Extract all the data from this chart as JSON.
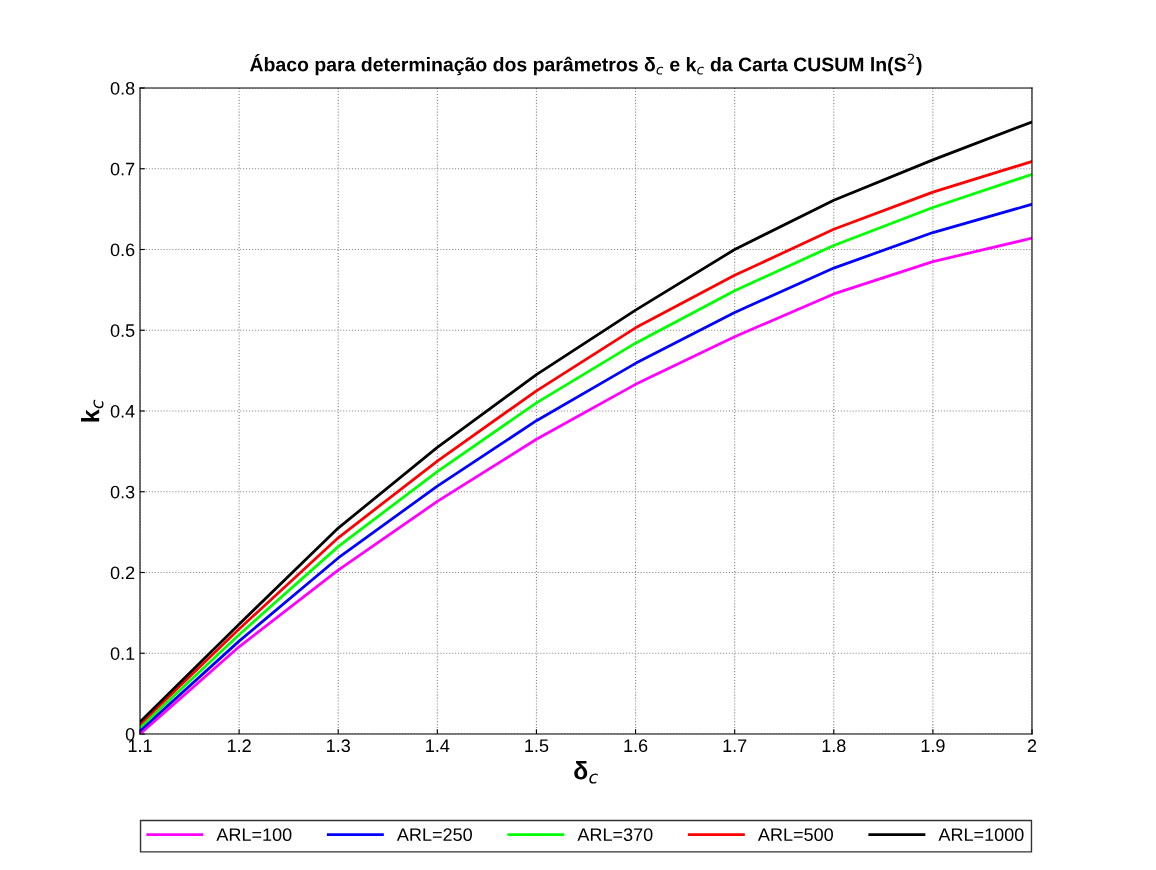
{
  "chart_data": {
    "type": "line",
    "title": "Ábaco para determinação dos parâmetros δ$_{c}$ e k$_{c}$ da Carta CUSUM ln(S$^{2}$)",
    "xlabel": "δ$_{c}$",
    "ylabel": "k$_{c}$",
    "x": [
      1.1,
      1.2,
      1.3,
      1.4,
      1.5,
      1.6,
      1.7,
      1.8,
      1.9,
      2.0
    ],
    "series": [
      {
        "name": "ARL=100",
        "color": "#ff00ff",
        "values": [
          0.0,
          0.108,
          0.203,
          0.288,
          0.365,
          0.433,
          0.492,
          0.545,
          0.585,
          0.614
        ]
      },
      {
        "name": "ARL=250",
        "color": "#0000ff",
        "values": [
          0.004,
          0.115,
          0.218,
          0.307,
          0.388,
          0.459,
          0.522,
          0.577,
          0.621,
          0.656
        ]
      },
      {
        "name": "ARL=370",
        "color": "#00ff00",
        "values": [
          0.008,
          0.123,
          0.232,
          0.325,
          0.41,
          0.484,
          0.549,
          0.605,
          0.652,
          0.693
        ]
      },
      {
        "name": "ARL=500",
        "color": "#ff0000",
        "values": [
          0.012,
          0.13,
          0.243,
          0.338,
          0.425,
          0.503,
          0.568,
          0.625,
          0.671,
          0.709
        ]
      },
      {
        "name": "ARL=1000",
        "color": "#000000",
        "values": [
          0.015,
          0.136,
          0.255,
          0.355,
          0.445,
          0.525,
          0.6,
          0.661,
          0.711,
          0.758
        ]
      }
    ],
    "xlim": [
      1.1,
      2
    ],
    "xticks": [
      1.1,
      1.2,
      1.3,
      1.4,
      1.5,
      1.6,
      1.7,
      1.8,
      1.9,
      2
    ],
    "ylim": [
      0,
      0.8
    ],
    "yticks": [
      0,
      0.1,
      0.2,
      0.3,
      0.4,
      0.5,
      0.6,
      0.7,
      0.8
    ],
    "grid": true,
    "legend": "bottom",
    "line_style": "solid",
    "marker": "none"
  }
}
